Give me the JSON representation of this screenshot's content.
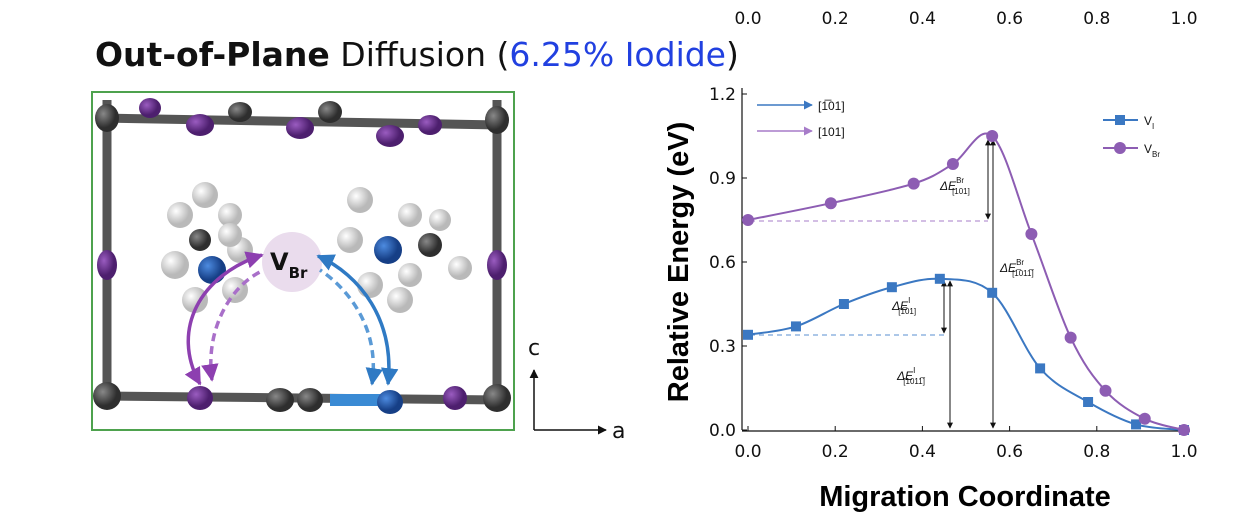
{
  "cropped_header": {
    "ticks": [
      {
        "value": 0,
        "label": "0.0"
      },
      {
        "value": 0.2,
        "label": "0.2"
      },
      {
        "value": 0.4,
        "label": "0.4"
      },
      {
        "value": 0.6,
        "label": "0.6"
      },
      {
        "value": 0.8,
        "label": "0.8"
      },
      {
        "value": 1,
        "label": "1.0"
      }
    ]
  },
  "heading": {
    "bold": "Out-of-Plane",
    "plain": " Diffusion (",
    "highlight": "6.25% Iodide",
    "close": ")"
  },
  "structure": {
    "vacancy": "V",
    "vacancy_sub": "Br",
    "axis_c": "c",
    "axis_a": "a"
  },
  "chart_data": {
    "type": "line",
    "xlabel": "Migration Coordinate",
    "ylabel": "Relative Energy (eV)",
    "xlim": [
      0,
      1
    ],
    "ylim": [
      0,
      1.2
    ],
    "xticks": [
      {
        "value": 0,
        "label": "0.0"
      },
      {
        "value": 0.2,
        "label": "0.2"
      },
      {
        "value": 0.4,
        "label": "0.4"
      },
      {
        "value": 0.6,
        "label": "0.6"
      },
      {
        "value": 0.8,
        "label": "0.8"
      },
      {
        "value": 1,
        "label": "1.0"
      }
    ],
    "yticks": [
      {
        "value": 0,
        "label": "0.0"
      },
      {
        "value": 0.3,
        "label": "0.3"
      },
      {
        "value": 0.6,
        "label": "0.6"
      },
      {
        "value": 0.9,
        "label": "0.9"
      },
      {
        "value": 1.2,
        "label": "1.2"
      }
    ],
    "series": [
      {
        "name": "V",
        "name_sub": "I",
        "color": "#3b78c2",
        "marker": "square",
        "x": [
          0,
          0.11,
          0.22,
          0.33,
          0.44,
          0.56,
          0.67,
          0.78,
          0.89,
          1.0
        ],
        "values": [
          0.34,
          0.37,
          0.45,
          0.51,
          0.54,
          0.49,
          0.22,
          0.1,
          0.02,
          0
        ]
      },
      {
        "name": "V",
        "name_sub": "Br",
        "color": "#8d5db3",
        "marker": "circle",
        "x": [
          0,
          0.19,
          0.38,
          0.47,
          0.56,
          0.65,
          0.74,
          0.82,
          0.91,
          1.0
        ],
        "values": [
          0.75,
          0.81,
          0.88,
          0.95,
          1.05,
          0.7,
          0.33,
          0.14,
          0.04,
          0
        ]
      }
    ],
    "direction_legend": [
      {
        "label": "[1̅01]",
        "color": "#3b78c2"
      },
      {
        "label": "[101]",
        "color": "#a77cc9"
      }
    ],
    "annotations": [
      {
        "main": "ΔE",
        "sup": "Br",
        "sub": "[101]"
      },
      {
        "main": "ΔE",
        "sup": "Br",
        "sub": "[1̅011̅]"
      },
      {
        "main": "ΔE",
        "sup": "I",
        "sub": "[1̅01]"
      },
      {
        "main": "ΔE",
        "sup": "I",
        "sub": "[1011̅]"
      }
    ]
  }
}
